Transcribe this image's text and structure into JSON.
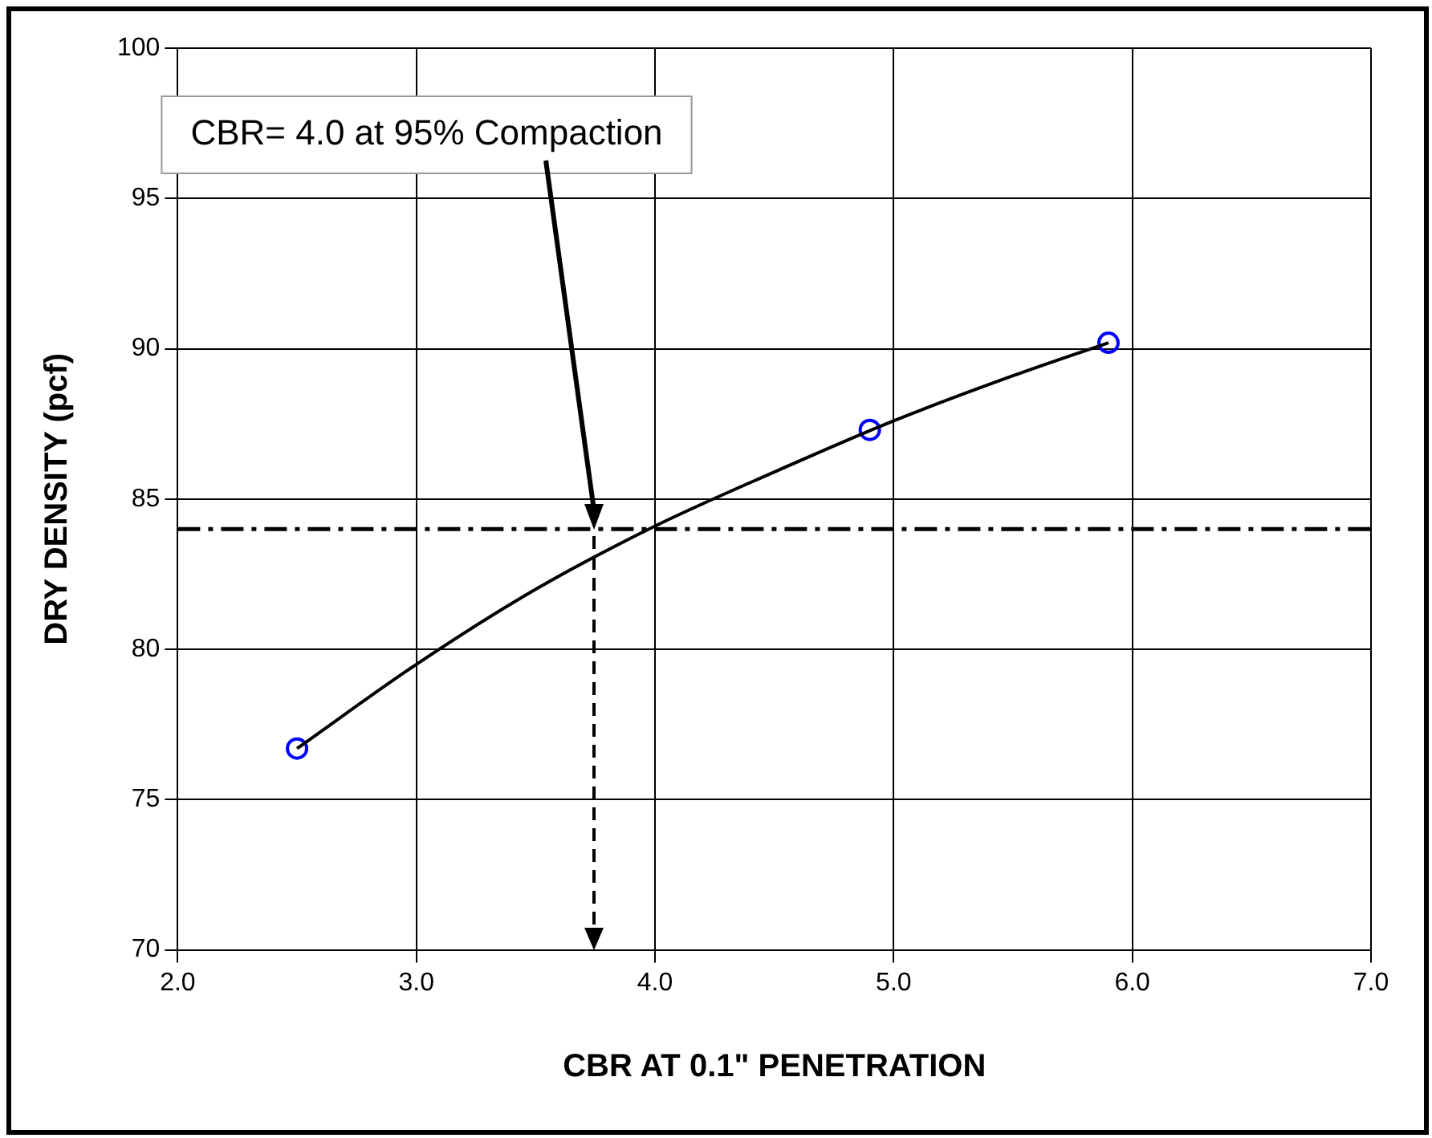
{
  "chart_data": {
    "type": "scatter",
    "xlabel": "CBR AT 0.1\" PENETRATION",
    "ylabel": "DRY DENSITY (pcf)",
    "xlim": [
      2.0,
      7.0
    ],
    "xticks": [
      {
        "value": 2,
        "label": "2.0"
      },
      {
        "value": 3,
        "label": "3.0"
      },
      {
        "value": 4,
        "label": "4.0"
      },
      {
        "value": 5,
        "label": "5.0"
      },
      {
        "value": 6,
        "label": "6.0"
      },
      {
        "value": 7,
        "label": "7.0"
      }
    ],
    "ylim": [
      70,
      100
    ],
    "yticks": [
      70,
      75,
      80,
      85,
      90,
      95,
      100
    ],
    "grid": true,
    "legend": false,
    "series": [
      {
        "type": "line",
        "color": "#000000",
        "marker": "none",
        "x": [
          2.5,
          3.0,
          3.5,
          4.0,
          4.5,
          5.0,
          5.5,
          5.9
        ],
        "values": [
          76.7,
          79.5,
          82.0,
          84.1,
          85.9,
          87.6,
          89.1,
          90.2
        ]
      },
      {
        "type": "scatter",
        "color": "#0000ff",
        "marker": "circle",
        "x": [
          2.5,
          4.9,
          5.9
        ],
        "values": [
          76.7,
          87.3,
          90.2
        ]
      }
    ],
    "ref_lines": [
      {
        "axis": "y",
        "value": 84.0,
        "color": "#000000",
        "line_style": "dashed"
      }
    ],
    "annotations": [
      "CBR= 4.0 at 95% Compaction"
    ]
  }
}
